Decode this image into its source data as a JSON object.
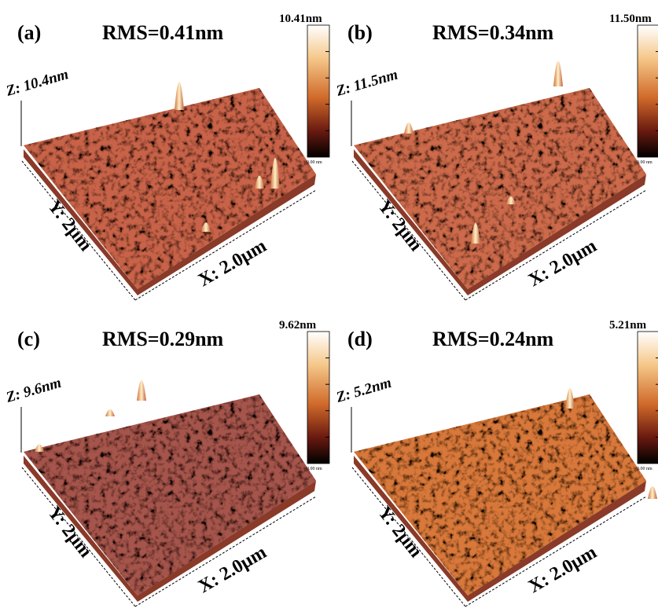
{
  "panels": [
    {
      "label": "(a)",
      "rms": "RMS=0.41nm",
      "z_label": "Z: 10.4nm",
      "y_label": "Y: 2µm",
      "x_label": "X: 2.0µm",
      "scale_max": "10.41nm",
      "scale_min": "0.00 nm"
    },
    {
      "label": "(b)",
      "rms": "RMS=0.34nm",
      "z_label": "Z: 11.5nm",
      "y_label": "Y: 2µm",
      "x_label": "X: 2.0µm",
      "scale_max": "11.50nm",
      "scale_min": "0.00 nm"
    },
    {
      "label": "(c)",
      "rms": "RMS=0.29nm",
      "z_label": "Z: 9.6nm",
      "y_label": "Y: 2µm",
      "x_label": "X: 2.0µm",
      "scale_max": "9.62nm",
      "scale_min": "0.00 nm"
    },
    {
      "label": "(d)",
      "rms": "RMS=0.24nm",
      "z_label": "Z: 5.2nm",
      "y_label": "Y: 2µm",
      "x_label": "X: 2.0µm",
      "scale_max": "5.21nm",
      "scale_min": "0.00 nm"
    }
  ]
}
